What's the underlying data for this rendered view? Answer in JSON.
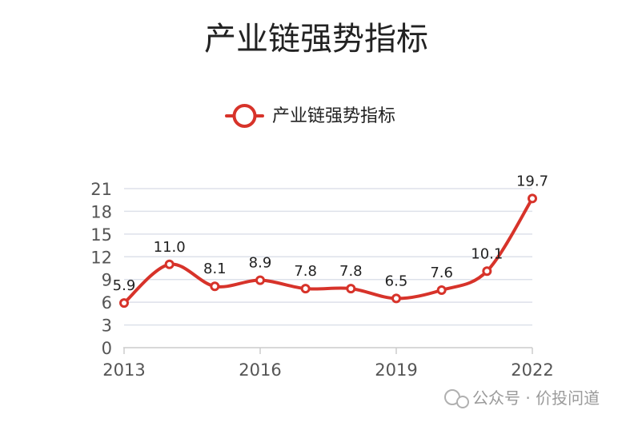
{
  "chart_data": {
    "type": "line",
    "title": "产业链强势指标",
    "legend": "产业链强势指标",
    "legend_position": "top",
    "x": [
      "2013",
      "2014",
      "2015",
      "2016",
      "2017",
      "2018",
      "2019",
      "2020",
      "2021",
      "2022"
    ],
    "x_tick_labels": [
      "2013",
      "2016",
      "2019",
      "2022"
    ],
    "series": [
      {
        "name": "产业链强势指标",
        "values": [
          5.9,
          11.0,
          8.1,
          8.9,
          7.8,
          7.8,
          6.5,
          7.6,
          10.1,
          19.7
        ]
      }
    ],
    "y_tick_labels": [
      "0",
      "3",
      "6",
      "9",
      "12",
      "15",
      "18",
      "21"
    ],
    "ylim": [
      0,
      21
    ],
    "grid": true,
    "smooth": true,
    "color": "#d7332a"
  },
  "watermark": "公众号 · 价投问道"
}
